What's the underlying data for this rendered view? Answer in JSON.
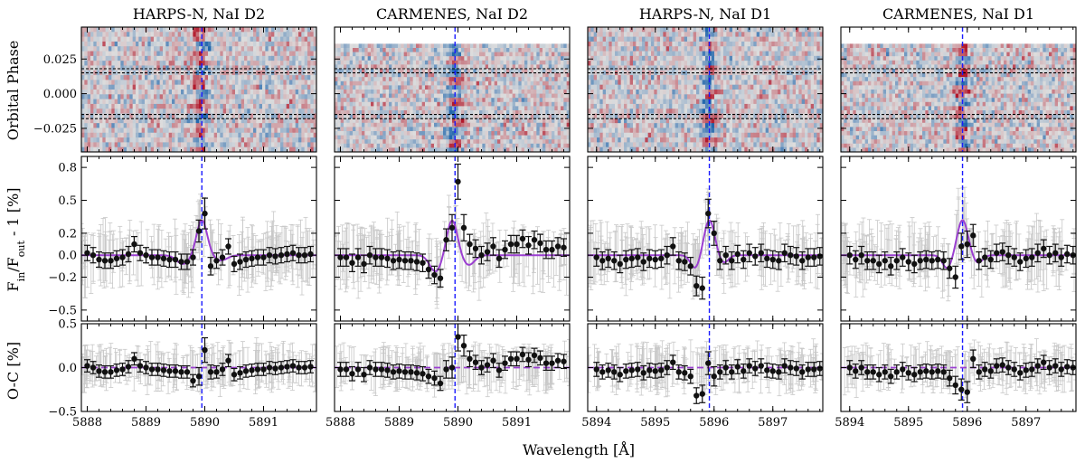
{
  "chart_data": {
    "type": "scatter",
    "xlabel": "Wavelength [Å]",
    "ylabel_top": "Orbital Phase",
    "ylabel_middle": "F_in/F_out - 1 [%]",
    "ylabel_middle_parts": {
      "F": "F",
      "in": "in",
      "slash": "/",
      "out": "out",
      "rest": " - 1 [%]"
    },
    "ylabel_bottom": "O-C [%]",
    "yticks_top": [
      "0.025",
      "0.000",
      "−0.025"
    ],
    "yticks_top_values": [
      0.025,
      0.0,
      -0.025
    ],
    "ylim_top": [
      -0.042,
      0.048
    ],
    "yticks_middle": [
      "0.8",
      "0.5",
      "0.2",
      "0.0",
      "−0.2",
      "−0.5"
    ],
    "yticks_middle_values": [
      0.8,
      0.5,
      0.2,
      0.0,
      -0.2,
      -0.5
    ],
    "ylim_middle": [
      -0.6,
      0.9
    ],
    "yticks_bottom": [
      "0.5",
      "0.0",
      "−0.5"
    ],
    "yticks_bottom_values": [
      0.5,
      0.0,
      -0.5
    ],
    "ylim_bottom": [
      -0.5,
      0.5
    ],
    "transit_contact_phases": [
      0.018,
      0.015,
      -0.015,
      -0.018
    ],
    "colors": {
      "points": "#111111",
      "residual_cloud": "#c8c8c8",
      "model": "#9b3fd1",
      "line_center": "#1a1aff",
      "cmap_red": "#b2182b",
      "cmap_blue": "#2166ac"
    },
    "panels": [
      {
        "title": "HARPS-N, NaI D2",
        "xlim": [
          5887.9,
          5891.9
        ],
        "xticks": [
          "5888",
          "5889",
          "5890",
          "5891"
        ],
        "xtick_values": [
          5888,
          5889,
          5890,
          5891
        ],
        "line_center": 5889.95,
        "map_phase_top": 0.048,
        "sign": 1,
        "model": {
          "amp": 0.32,
          "center": 5889.95,
          "sigma": 0.09,
          "side_amp": 0.08,
          "side_offset": 0.32,
          "side_sigma": 0.11
        },
        "binned_x": [
          5888.0,
          5888.1,
          5888.2,
          5888.3,
          5888.4,
          5888.5,
          5888.6,
          5888.7,
          5888.8,
          5888.9,
          5889.0,
          5889.1,
          5889.2,
          5889.3,
          5889.4,
          5889.5,
          5889.6,
          5889.7,
          5889.8,
          5889.9,
          5890.0,
          5890.1,
          5890.2,
          5890.3,
          5890.4,
          5890.5,
          5890.6,
          5890.7,
          5890.8,
          5890.9,
          5891.0,
          5891.1,
          5891.2,
          5891.3,
          5891.4,
          5891.5,
          5891.6,
          5891.7,
          5891.8
        ],
        "binned_y": [
          0.02,
          0.0,
          -0.04,
          -0.05,
          -0.05,
          -0.03,
          -0.02,
          0.01,
          0.1,
          0.02,
          0.0,
          -0.02,
          -0.02,
          -0.03,
          -0.04,
          -0.04,
          -0.06,
          -0.06,
          -0.02,
          0.22,
          0.38,
          -0.1,
          -0.05,
          -0.02,
          0.08,
          -0.08,
          -0.06,
          -0.04,
          -0.03,
          -0.02,
          -0.02,
          0.0,
          -0.01,
          0.0,
          0.01,
          0.02,
          0.0,
          0.0,
          0.01
        ],
        "binned_err": [
          0.07,
          0.07,
          0.07,
          0.07,
          0.07,
          0.07,
          0.07,
          0.07,
          0.07,
          0.07,
          0.07,
          0.07,
          0.07,
          0.07,
          0.07,
          0.07,
          0.07,
          0.07,
          0.07,
          0.1,
          0.14,
          0.08,
          0.07,
          0.07,
          0.07,
          0.07,
          0.07,
          0.07,
          0.07,
          0.07,
          0.07,
          0.07,
          0.07,
          0.07,
          0.07,
          0.07,
          0.07,
          0.07,
          0.07
        ],
        "residual_y": [
          0.02,
          0.0,
          -0.04,
          -0.05,
          -0.05,
          -0.03,
          -0.02,
          0.01,
          0.1,
          0.02,
          0.0,
          -0.02,
          -0.02,
          -0.03,
          -0.04,
          -0.04,
          -0.05,
          -0.05,
          -0.15,
          -0.1,
          0.2,
          -0.05,
          -0.05,
          -0.02,
          0.08,
          -0.08,
          -0.06,
          -0.04,
          -0.03,
          -0.02,
          -0.02,
          0.0,
          -0.01,
          0.0,
          0.01,
          0.02,
          0.0,
          0.0,
          0.01
        ]
      },
      {
        "title": "CARMENES, NaI D2",
        "xlim": [
          5887.9,
          5891.9
        ],
        "xticks": [
          "5888",
          "5889",
          "5890",
          "5891"
        ],
        "xtick_values": [
          5888,
          5889,
          5890,
          5891
        ],
        "line_center": 5889.95,
        "map_phase_top": 0.036,
        "sign": -1,
        "model": {
          "amp": 0.32,
          "center": 5889.9,
          "sigma": 0.09,
          "side_amp": 0.15,
          "side_offset": 0.28,
          "side_sigma": 0.1
        },
        "binned_x": [
          5888.0,
          5888.1,
          5888.2,
          5888.3,
          5888.4,
          5888.5,
          5888.6,
          5888.7,
          5888.8,
          5888.9,
          5889.0,
          5889.1,
          5889.2,
          5889.3,
          5889.4,
          5889.5,
          5889.6,
          5889.7,
          5889.8,
          5889.9,
          5890.0,
          5890.1,
          5890.2,
          5890.3,
          5890.4,
          5890.5,
          5890.6,
          5890.7,
          5890.8,
          5890.9,
          5891.0,
          5891.1,
          5891.2,
          5891.3,
          5891.4,
          5891.5,
          5891.6,
          5891.7,
          5891.8
        ],
        "binned_y": [
          -0.02,
          -0.02,
          -0.07,
          -0.02,
          -0.08,
          0.0,
          -0.02,
          -0.02,
          -0.03,
          -0.05,
          -0.04,
          -0.05,
          -0.05,
          -0.06,
          -0.07,
          -0.13,
          -0.18,
          -0.21,
          0.14,
          0.25,
          0.67,
          0.25,
          0.1,
          0.06,
          0.0,
          0.03,
          0.08,
          -0.03,
          0.05,
          0.1,
          0.1,
          0.15,
          0.09,
          0.14,
          0.11,
          0.05,
          0.05,
          0.08,
          0.07
        ],
        "binned_err": [
          0.08,
          0.08,
          0.08,
          0.08,
          0.08,
          0.08,
          0.08,
          0.08,
          0.08,
          0.08,
          0.08,
          0.08,
          0.08,
          0.08,
          0.08,
          0.08,
          0.08,
          0.08,
          0.1,
          0.12,
          0.16,
          0.12,
          0.09,
          0.08,
          0.08,
          0.08,
          0.08,
          0.08,
          0.08,
          0.08,
          0.08,
          0.08,
          0.08,
          0.08,
          0.08,
          0.08,
          0.08,
          0.08,
          0.08
        ],
        "residual_y": [
          -0.02,
          -0.02,
          -0.07,
          -0.02,
          -0.08,
          0.0,
          -0.02,
          -0.02,
          -0.03,
          -0.05,
          -0.04,
          -0.05,
          -0.05,
          -0.06,
          -0.07,
          -0.1,
          -0.12,
          -0.18,
          -0.02,
          0.0,
          0.35,
          0.25,
          0.1,
          0.06,
          0.0,
          0.03,
          0.08,
          -0.03,
          0.05,
          0.1,
          0.1,
          0.15,
          0.09,
          0.14,
          0.11,
          0.05,
          0.05,
          0.08,
          0.07
        ]
      },
      {
        "title": "HARPS-N, NaI D1",
        "xlim": [
          5893.85,
          5897.85
        ],
        "xticks": [
          "5894",
          "5895",
          "5896",
          "5897"
        ],
        "xtick_values": [
          5894,
          5895,
          5896,
          5897
        ],
        "line_center": 5895.92,
        "map_phase_top": 0.048,
        "sign": -1,
        "model": {
          "amp": 0.32,
          "center": 5895.92,
          "sigma": 0.09,
          "side_amp": 0.12,
          "side_offset": 0.24,
          "side_sigma": 0.08
        },
        "binned_x": [
          5894.0,
          5894.1,
          5894.2,
          5894.3,
          5894.4,
          5894.5,
          5894.6,
          5894.7,
          5894.8,
          5894.9,
          5895.0,
          5895.1,
          5895.2,
          5895.3,
          5895.4,
          5895.5,
          5895.6,
          5895.7,
          5895.8,
          5895.9,
          5896.0,
          5896.1,
          5896.2,
          5896.3,
          5896.4,
          5896.5,
          5896.6,
          5896.7,
          5896.8,
          5896.9,
          5897.0,
          5897.1,
          5897.2,
          5897.3,
          5897.4,
          5897.5,
          5897.6,
          5897.7,
          5897.8
        ],
        "binned_y": [
          -0.02,
          -0.05,
          -0.03,
          -0.05,
          -0.08,
          -0.04,
          -0.03,
          -0.02,
          -0.06,
          -0.03,
          -0.04,
          -0.03,
          0.0,
          0.08,
          -0.05,
          -0.06,
          -0.1,
          -0.28,
          -0.3,
          0.38,
          0.2,
          -0.05,
          0.0,
          -0.05,
          0.01,
          -0.04,
          0.02,
          -0.01,
          0.02,
          -0.03,
          -0.04,
          -0.05,
          0.02,
          0.0,
          -0.01,
          -0.05,
          -0.02,
          -0.02,
          -0.01
        ],
        "binned_err": [
          0.08,
          0.08,
          0.08,
          0.08,
          0.08,
          0.08,
          0.08,
          0.08,
          0.08,
          0.08,
          0.08,
          0.08,
          0.08,
          0.08,
          0.08,
          0.08,
          0.08,
          0.09,
          0.1,
          0.13,
          0.11,
          0.08,
          0.08,
          0.08,
          0.08,
          0.08,
          0.08,
          0.08,
          0.08,
          0.08,
          0.08,
          0.08,
          0.08,
          0.08,
          0.08,
          0.08,
          0.08,
          0.08,
          0.08
        ],
        "residual_y": [
          -0.02,
          -0.05,
          -0.03,
          -0.05,
          -0.08,
          -0.04,
          -0.03,
          -0.02,
          -0.06,
          -0.03,
          -0.04,
          -0.03,
          0.0,
          0.06,
          -0.05,
          -0.06,
          -0.1,
          -0.32,
          -0.3,
          0.05,
          -0.1,
          -0.05,
          0.0,
          -0.05,
          0.01,
          -0.04,
          0.02,
          -0.01,
          0.02,
          -0.03,
          -0.04,
          -0.05,
          0.02,
          0.0,
          -0.01,
          -0.05,
          -0.02,
          -0.02,
          -0.01
        ]
      },
      {
        "title": "CARMENES, NaI D1",
        "xlim": [
          5893.85,
          5897.85
        ],
        "xticks": [
          "5894",
          "5895",
          "5896",
          "5897"
        ],
        "xtick_values": [
          5894,
          5895,
          5896,
          5897
        ],
        "line_center": 5895.92,
        "map_phase_top": 0.036,
        "sign": 1,
        "model": {
          "amp": 0.32,
          "center": 5895.92,
          "sigma": 0.09,
          "side_amp": 0.12,
          "side_offset": 0.26,
          "side_sigma": 0.08
        },
        "binned_x": [
          5894.0,
          5894.1,
          5894.2,
          5894.3,
          5894.4,
          5894.5,
          5894.6,
          5894.7,
          5894.8,
          5894.9,
          5895.0,
          5895.1,
          5895.2,
          5895.3,
          5895.4,
          5895.5,
          5895.6,
          5895.7,
          5895.8,
          5895.9,
          5896.0,
          5896.1,
          5896.2,
          5896.3,
          5896.4,
          5896.5,
          5896.6,
          5896.7,
          5896.8,
          5896.9,
          5897.0,
          5897.1,
          5897.2,
          5897.3,
          5897.4,
          5897.5,
          5897.6,
          5897.7,
          5897.8
        ],
        "binned_y": [
          0.0,
          -0.04,
          0.0,
          -0.05,
          -0.05,
          -0.08,
          -0.05,
          -0.1,
          -0.05,
          -0.02,
          -0.06,
          -0.08,
          -0.05,
          -0.04,
          -0.05,
          -0.04,
          -0.05,
          -0.12,
          -0.2,
          0.08,
          0.1,
          0.18,
          -0.05,
          -0.02,
          -0.04,
          0.02,
          0.03,
          0.0,
          -0.02,
          -0.06,
          -0.03,
          -0.02,
          0.02,
          0.06,
          0.0,
          0.02,
          -0.02,
          0.01,
          0.0
        ],
        "binned_err": [
          0.08,
          0.08,
          0.08,
          0.08,
          0.08,
          0.08,
          0.08,
          0.08,
          0.08,
          0.08,
          0.08,
          0.08,
          0.08,
          0.08,
          0.08,
          0.08,
          0.08,
          0.09,
          0.1,
          0.12,
          0.12,
          0.1,
          0.08,
          0.08,
          0.08,
          0.08,
          0.08,
          0.08,
          0.08,
          0.08,
          0.08,
          0.08,
          0.08,
          0.08,
          0.08,
          0.08,
          0.08,
          0.08,
          0.08
        ],
        "residual_y": [
          0.0,
          -0.04,
          0.0,
          -0.05,
          -0.05,
          -0.08,
          -0.05,
          -0.1,
          -0.05,
          -0.02,
          -0.06,
          -0.08,
          -0.05,
          -0.04,
          -0.05,
          -0.04,
          -0.05,
          -0.12,
          -0.2,
          -0.25,
          -0.28,
          0.1,
          -0.05,
          -0.02,
          -0.04,
          0.02,
          0.03,
          0.0,
          -0.02,
          -0.06,
          -0.03,
          -0.02,
          0.02,
          0.06,
          0.0,
          0.02,
          -0.02,
          0.01,
          0.0
        ]
      }
    ]
  }
}
